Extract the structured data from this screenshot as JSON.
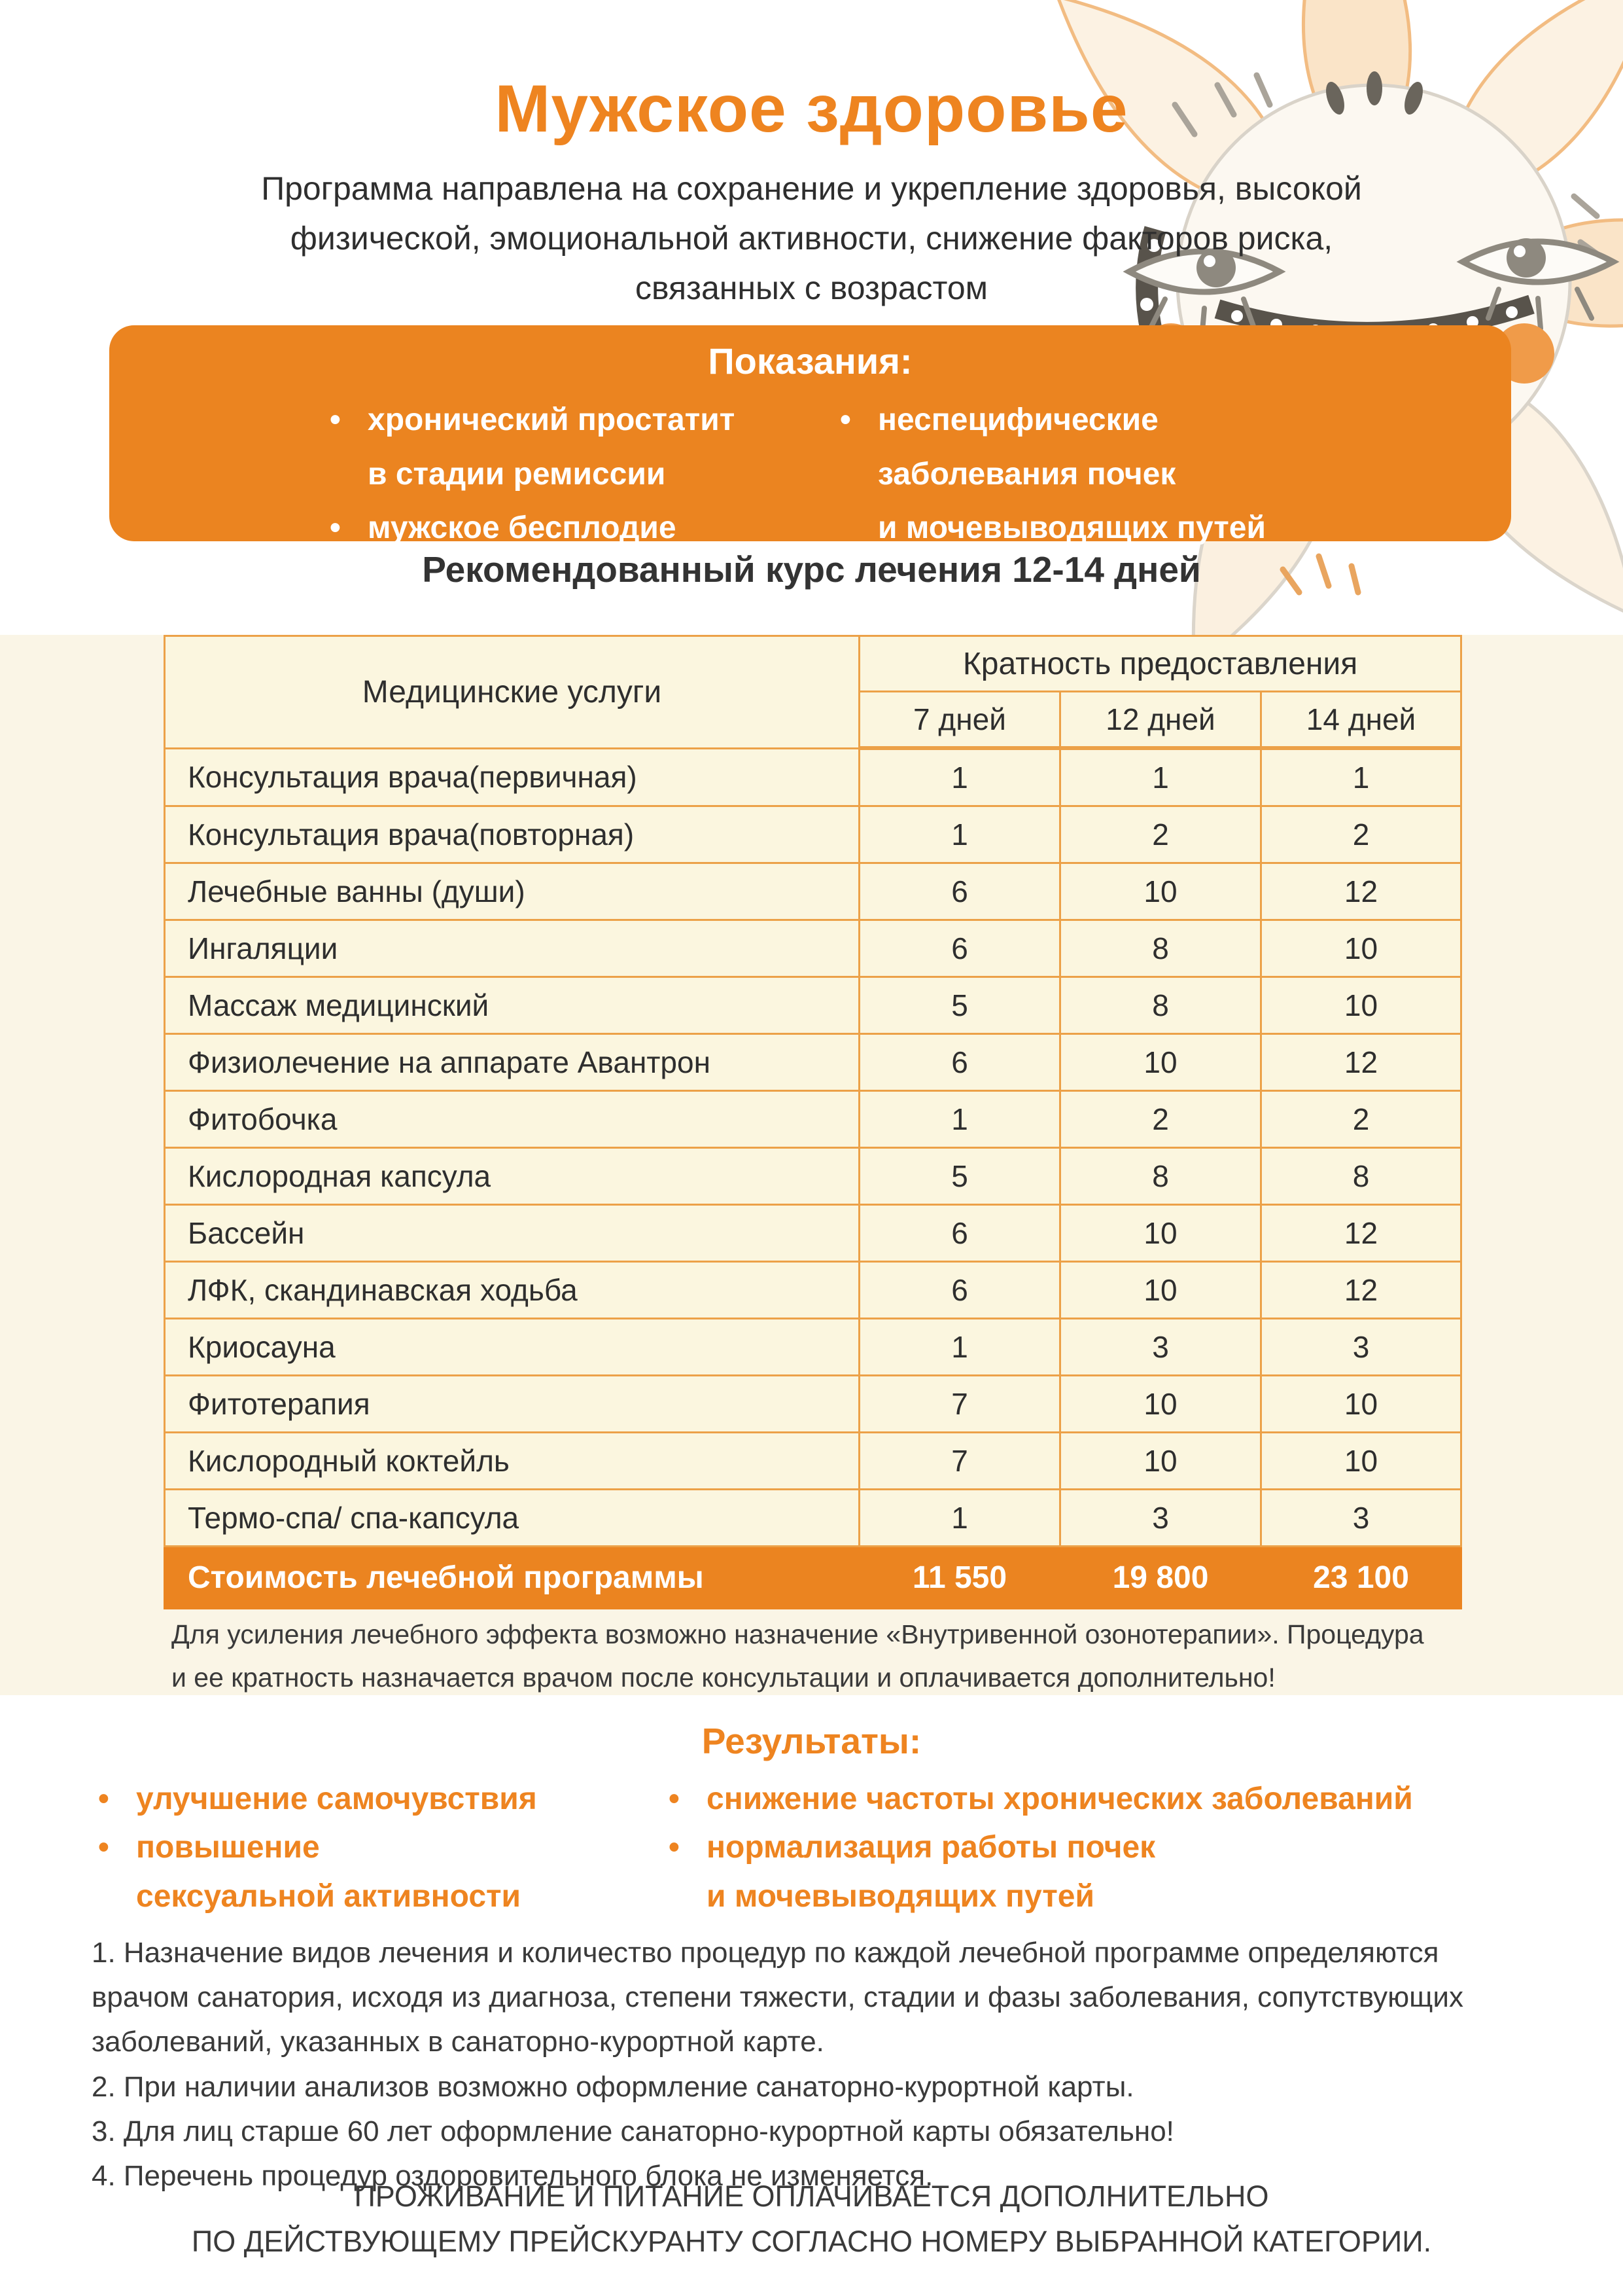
{
  "header": {
    "title": "Мужское здоровье",
    "description": "Программа направлена на сохранение и укрепление здоровья, высокой\nфизической, эмоциональной активности, снижение факторов риска,\nсвязанных с возрастом"
  },
  "indications": {
    "title": "Показания:",
    "col_left": [
      "хронический простатит\nв стадии ремиссии",
      "мужское бесплодие"
    ],
    "col_right": [
      "неспецифические\nзаболевания почек\nи мочевыводящих путей"
    ]
  },
  "course_heading": "Рекомендованный курс лечения 12-14 дней",
  "table": {
    "col1_header": "Медицинские услуги",
    "group_header": "Кратность предоставления",
    "day_headers": [
      "7 дней",
      "12 дней",
      "14 дней"
    ],
    "rows": [
      {
        "service": "Консультация врача(первичная)",
        "values": [
          "1",
          "1",
          "1"
        ]
      },
      {
        "service": "Консультация врача(повторная)",
        "values": [
          "1",
          "2",
          "2"
        ]
      },
      {
        "service": "Лечебные ванны (души)",
        "values": [
          "6",
          "10",
          "12"
        ]
      },
      {
        "service": "Ингаляции",
        "values": [
          "6",
          "8",
          "10"
        ]
      },
      {
        "service": "Массаж медицинский",
        "values": [
          "5",
          "8",
          "10"
        ]
      },
      {
        "service": "Физиолечение на аппарате Авантрон",
        "values": [
          "6",
          "10",
          "12"
        ]
      },
      {
        "service": "Фитобочка",
        "values": [
          "1",
          "2",
          "2"
        ]
      },
      {
        "service": "Кислородная капсула",
        "values": [
          "5",
          "8",
          "8"
        ]
      },
      {
        "service": "Бассейн",
        "values": [
          "6",
          "10",
          "12"
        ]
      },
      {
        "service": "ЛФК, скандинавская ходьба",
        "values": [
          "6",
          "10",
          "12"
        ]
      },
      {
        "service": "Криосауна",
        "values": [
          "1",
          "3",
          "3"
        ]
      },
      {
        "service": "Фитотерапия",
        "values": [
          "7",
          "10",
          "10"
        ]
      },
      {
        "service": "Кислородный коктейль",
        "values": [
          "7",
          "10",
          "10"
        ]
      },
      {
        "service": "Термо-спа/ спа-капсула",
        "values": [
          "1",
          "3",
          "3"
        ]
      }
    ],
    "footer": {
      "label": "Стоимость лечебной программы",
      "values": [
        "11 550",
        "19 800",
        "23 100"
      ]
    }
  },
  "note": "Для усиления лечебного эффекта возможно назначение «Внутривенной озонотерапии». Процедура\nи ее кратность назначается врачом после консультации и оплачивается дополнительно!",
  "results": {
    "title": "Результаты:",
    "col_left": [
      "улучшение самочувствия",
      "повышение\nсексуальной активности"
    ],
    "col_right": [
      "снижение частоты хронических заболеваний",
      "нормализация работы почек\nи мочевыводящих путей"
    ]
  },
  "terms": [
    "1. Назначение видов лечения и количество процедур по каждой лечебной программе определяются\nврачом санатория, исходя из диагноза, степени тяжести, стадии и фазы заболевания, сопутствующих\nзаболеваний, указанных в санаторно-курортной карте.",
    "2. При наличии анализов возможно оформление санаторно-курортной карты.",
    "3. Для лиц старше 60 лет оформление санаторно-курортной карты обязательно!",
    "4. Перечень процедур оздоровительного блока не изменяется."
  ],
  "footer": "ПРОЖИВАНИЕ И ПИТАНИЕ ОПЛАЧИВАЕТСЯ ДОПОЛНИТЕЛЬНО\nПО ДЕЙСТВУЮЩЕМУ ПРЕЙСКУРАНТУ СОГЛАСНО НОМЕРУ ВЫБРАННОЙ КАТЕГОРИИ.",
  "colors": {
    "accent": "#EB8420",
    "accent_text": "#EE8420",
    "table_border": "#ECA148",
    "band_bg": "#FAF5E6",
    "cell_bg": "#FBF6DF"
  },
  "icons": {
    "watermark": "sun-flower-folk-face"
  }
}
